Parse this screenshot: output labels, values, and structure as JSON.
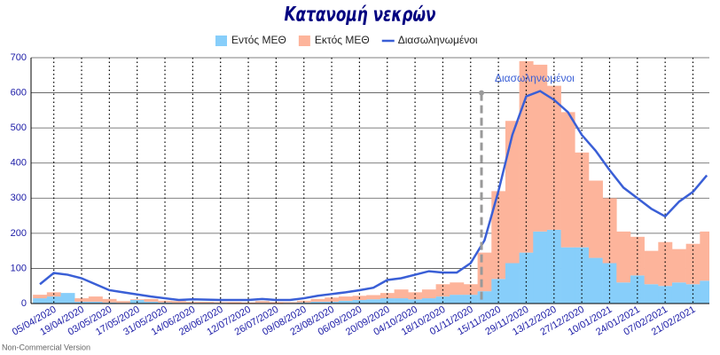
{
  "chart_data": {
    "type": "bar",
    "title": "Κατανομή νεκρών",
    "categories": [
      null,
      "05/04/2020",
      null,
      "19/04/2020",
      null,
      "03/05/2020",
      null,
      "17/05/2020",
      null,
      "31/05/2020",
      null,
      "14/06/2020",
      null,
      "28/06/2020",
      null,
      "12/07/2020",
      null,
      "26/07/2020",
      null,
      "09/08/2020",
      null,
      "23/08/2020",
      null,
      "06/09/2020",
      null,
      "20/09/2020",
      null,
      "04/10/2020",
      null,
      "18/10/2020",
      null,
      "01/11/2020",
      null,
      "15/11/2020",
      null,
      "29/11/2020",
      null,
      "13/12/2020",
      null,
      "27/12/2020",
      null,
      "10/01/2021",
      null,
      "24/01/2021",
      null,
      "07/02/2021",
      null,
      "21/02/2021",
      null
    ],
    "series": [
      {
        "name": "Εντός ΜΕΘ",
        "color": "#87cefa",
        "kind": "bar",
        "values": [
          15,
          20,
          30,
          5,
          5,
          3,
          2,
          10,
          5,
          3,
          2,
          2,
          2,
          2,
          1,
          1,
          2,
          1,
          2,
          3,
          5,
          5,
          8,
          10,
          12,
          15,
          15,
          12,
          15,
          20,
          25,
          25,
          35,
          70,
          115,
          145,
          205,
          210,
          160,
          160,
          130,
          115,
          60,
          80,
          55,
          50,
          60,
          55,
          65
        ]
      },
      {
        "name": "Εκτός ΜΕΘ",
        "color": "#fdb49b",
        "kind": "bar",
        "values": [
          10,
          12,
          0,
          10,
          15,
          10,
          5,
          2,
          8,
          5,
          5,
          3,
          3,
          2,
          3,
          2,
          5,
          3,
          2,
          5,
          8,
          12,
          12,
          12,
          12,
          15,
          25,
          20,
          25,
          35,
          35,
          30,
          110,
          250,
          405,
          545,
          475,
          410,
          385,
          270,
          220,
          185,
          145,
          110,
          95,
          125,
          95,
          115,
          140
        ]
      },
      {
        "name": "Διασωληνωμένοι",
        "color": "#3a5fd6",
        "kind": "line",
        "values": [
          55,
          87,
          82,
          72,
          55,
          38,
          32,
          26,
          20,
          15,
          10,
          12,
          11,
          10,
          10,
          10,
          13,
          10,
          10,
          15,
          22,
          27,
          32,
          38,
          45,
          67,
          72,
          82,
          92,
          88,
          88,
          115,
          180,
          320,
          480,
          590,
          605,
          580,
          545,
          480,
          435,
          380,
          330,
          300,
          270,
          248,
          290,
          318,
          365
        ]
      }
    ],
    "annotation": {
      "label": "Διασωληνωμένοι",
      "value": 600
    },
    "footnote": "Non-Commercial Version",
    "ylim": [
      0,
      700
    ],
    "yticks": [
      0,
      100,
      200,
      300,
      400,
      500,
      600,
      700
    ],
    "grid": true
  }
}
